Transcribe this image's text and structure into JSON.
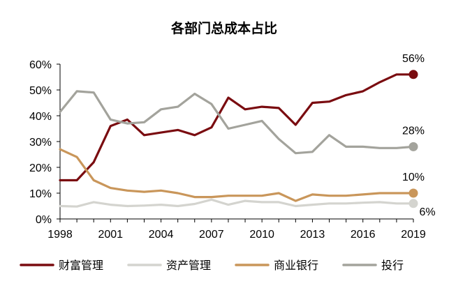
{
  "chart_data": {
    "type": "line",
    "title": "各部门总成本占比",
    "xlabel": "",
    "ylabel": "",
    "x": [
      1998,
      1999,
      2000,
      2001,
      2002,
      2003,
      2004,
      2005,
      2006,
      2007,
      2008,
      2009,
      2010,
      2011,
      2012,
      2013,
      2014,
      2015,
      2016,
      2017,
      2018,
      2019
    ],
    "xticks": [
      "1998",
      "2001",
      "2004",
      "2007",
      "2010",
      "2013",
      "2016",
      "2019"
    ],
    "xlim": [
      1998,
      2019
    ],
    "yticks": [
      "0%",
      "10%",
      "20%",
      "30%",
      "40%",
      "50%",
      "60%"
    ],
    "ylim": [
      0,
      60
    ],
    "grid": false,
    "legend_position": "bottom",
    "series": [
      {
        "name": "财富管理",
        "color": "#7a0c10",
        "values": [
          15,
          15,
          22,
          36,
          38.5,
          32.5,
          33.5,
          34.5,
          32.5,
          35.5,
          47,
          42.5,
          43.5,
          43,
          36.5,
          45,
          45.5,
          48,
          49.5,
          53,
          56,
          56
        ],
        "end_label": "56%"
      },
      {
        "name": "资产管理",
        "color": "#d4d4cf",
        "values": [
          5,
          4.8,
          6.5,
          5.5,
          5,
          5.2,
          5.5,
          5,
          5.8,
          7.5,
          5.5,
          7,
          6.5,
          6.5,
          5,
          5.5,
          6,
          6,
          6.3,
          6.5,
          6,
          6
        ],
        "end_label": "6%"
      },
      {
        "name": "商业银行",
        "color": "#c9965a",
        "values": [
          27,
          24,
          15,
          12,
          11,
          10.5,
          11,
          10,
          8.5,
          8.5,
          9,
          9,
          9,
          10,
          7,
          9.5,
          9,
          9,
          9.5,
          10,
          10,
          10
        ],
        "end_label": "10%"
      },
      {
        "name": "投行",
        "color": "#a3a39c",
        "values": [
          41.5,
          49.5,
          49,
          38.5,
          37,
          37.5,
          42.5,
          43.5,
          48.5,
          44.5,
          35,
          36.5,
          38,
          31,
          25.5,
          26,
          32.5,
          28,
          28,
          27.5,
          27.5,
          28
        ],
        "end_label": "28%"
      }
    ]
  }
}
